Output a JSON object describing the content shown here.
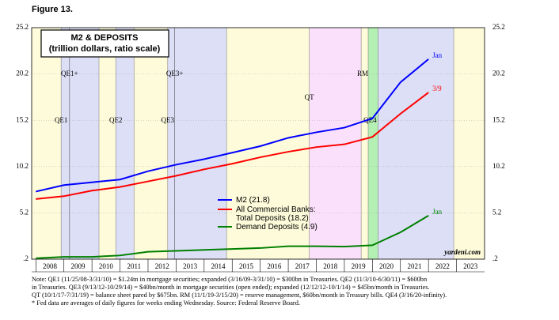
{
  "chart_data": {
    "type": "line",
    "figure_label": "Figure 13.",
    "title": "M2 & DEPOSITS",
    "subtitle": "(trillion dollars, ratio scale)",
    "source_mark": "yardeni.com",
    "x": [
      2008,
      2009,
      2010,
      2011,
      2012,
      2013,
      2014,
      2015,
      2016,
      2017,
      2018,
      2019,
      2020,
      2021,
      2022
    ],
    "series": [
      {
        "name": "M2 (21.8)",
        "color": "#0000ff",
        "end_label": "Jan",
        "values": [
          7.5,
          8.2,
          8.5,
          8.8,
          9.7,
          10.4,
          11.0,
          11.7,
          12.4,
          13.3,
          13.9,
          14.4,
          15.4,
          19.3,
          21.8
        ]
      },
      {
        "name": "All Commercial Banks:\nTotal Deposits (18.2)",
        "color": "#ff0000",
        "end_label": "3/9",
        "values": [
          6.7,
          7.0,
          7.6,
          8.0,
          8.6,
          9.2,
          9.9,
          10.5,
          11.2,
          11.8,
          12.3,
          12.6,
          13.4,
          15.9,
          18.2
        ]
      },
      {
        "name": "Demand Deposits (4.9)",
        "color": "#008000",
        "end_label": "Jan",
        "values": [
          0.3,
          0.45,
          0.45,
          0.6,
          1.0,
          1.1,
          1.2,
          1.3,
          1.4,
          1.6,
          1.6,
          1.55,
          1.7,
          3.1,
          4.9
        ]
      }
    ],
    "xlim": [
      2007.85,
      2024
    ],
    "xticks": [
      2008,
      2009,
      2010,
      2011,
      2012,
      2013,
      2014,
      2015,
      2016,
      2017,
      2018,
      2019,
      2020,
      2021,
      2022,
      2023
    ],
    "ylim": [
      0.2,
      25.2
    ],
    "yticks": [
      {
        "value": 0.2,
        "label": ".2"
      },
      5.2,
      10.2,
      15.2,
      20.2,
      25.2
    ],
    "periods": [
      {
        "label": "QE1",
        "start": 2008.9,
        "end": 2010.25,
        "color": "#dcdff6"
      },
      {
        "label": "QE2",
        "start": 2010.85,
        "end": 2011.5,
        "color": "#dcdff6"
      },
      {
        "label": "QE3",
        "start": 2012.7,
        "end": 2014.8,
        "color": "#dcdff6"
      },
      {
        "label": "QT",
        "start": 2017.75,
        "end": 2019.6,
        "color": "#fbe0fb"
      },
      {
        "label": "RM",
        "start": 2019.85,
        "end": 2020.2,
        "color": "#b4efb4"
      },
      {
        "label": "QE4",
        "start": 2020.2,
        "end": 2022.9,
        "color": "#dcdff6"
      }
    ],
    "markers": [
      {
        "label": "QE1+",
        "date": 2009.2
      },
      {
        "label": "QE3+",
        "date": 2012.95
      }
    ],
    "background": "#fdfbd9",
    "notes": [
      "Note: QE1 (11/25/08-3/31/10) = $1.24tn in mortgage securities; expanded (3/16/09-3/31/10) = $300bn in Treasuries. QE2 (11/3/10-6/30/11) = $600bn",
      "in Treasuries. QE3 (9/13/12-10/29/14) = $40bn/month in mortgage securities (open ended); expanded (12/12/12-10/1/14) = $45bn/month in Treasuries.",
      "QT (10/1/17-7/31/19) = balance sheet pared by $675bn. RM (11/1/19-3/15/20) = reserve management, $60bn/month in Treasury bills. QE4 (3/16/20-infinity).",
      "*  Fed data are averages of daily figures for weeks ending Wednesday. Source: Federal Reserve Board."
    ]
  }
}
